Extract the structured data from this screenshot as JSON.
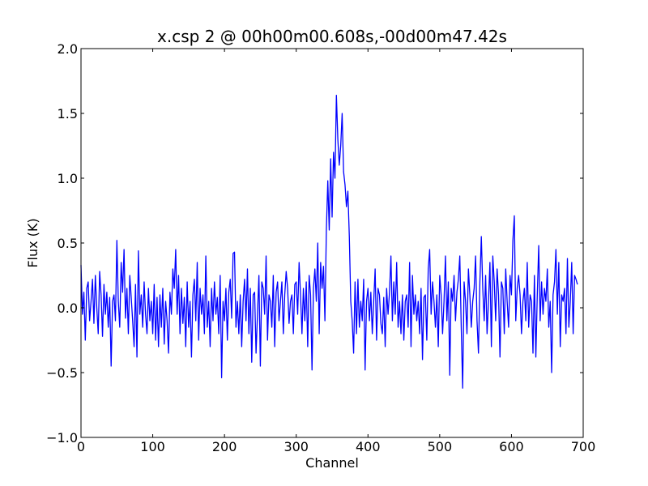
{
  "chart_data": {
    "type": "line",
    "title": "x.csp 2 @ 00h00m00.608s,-00d00m47.42s",
    "xlabel": "Channel",
    "ylabel": "Flux (K)",
    "xlim": [
      0,
      700
    ],
    "ylim": [
      -1.0,
      2.0
    ],
    "grid": false,
    "line_color": "#0000ff",
    "xticks": [
      0,
      100,
      200,
      300,
      400,
      500,
      600,
      700
    ],
    "xtick_labels": [
      "0",
      "100",
      "200",
      "300",
      "400",
      "500",
      "600",
      "700"
    ],
    "yticks": [
      -1.0,
      -0.5,
      0.0,
      0.5,
      1.0,
      1.5,
      2.0
    ],
    "ytick_labels": [
      "−1.0",
      "−0.5",
      "0.0",
      "0.5",
      "1.0",
      "1.5",
      "2.0"
    ],
    "series": [
      {
        "x_start": 0,
        "x_step": 2,
        "values": [
          0.33,
          -0.05,
          0.12,
          -0.25,
          0.15,
          0.2,
          -0.1,
          0.05,
          0.22,
          -0.12,
          0.25,
          0.0,
          -0.2,
          0.28,
          0.1,
          -0.22,
          0.18,
          -0.05,
          0.12,
          -0.15,
          0.08,
          -0.45,
          0.05,
          0.1,
          -0.1,
          0.52,
          0.05,
          -0.15,
          0.35,
          0.12,
          0.45,
          -0.08,
          0.15,
          -0.2,
          0.25,
          0.08,
          -0.1,
          -0.3,
          0.18,
          -0.38,
          0.44,
          -0.05,
          0.1,
          -0.15,
          0.2,
          -0.05,
          -0.2,
          0.15,
          -0.1,
          0.05,
          -0.2,
          0.18,
          -0.25,
          0.08,
          -0.3,
          0.1,
          -0.15,
          0.15,
          -0.28,
          0.05,
          -0.1,
          -0.35,
          0.12,
          -0.05,
          0.3,
          0.15,
          0.45,
          -0.05,
          0.25,
          -0.2,
          0.15,
          -0.12,
          0.08,
          -0.3,
          0.2,
          -0.15,
          0.05,
          -0.38,
          0.1,
          0.22,
          -0.1,
          0.35,
          -0.25,
          0.15,
          -0.05,
          0.1,
          -0.2,
          0.4,
          -0.15,
          0.05,
          -0.3,
          0.15,
          -0.1,
          0.2,
          -0.05,
          0.08,
          -0.2,
          0.25,
          -0.54,
          0.05,
          -0.1,
          0.15,
          -0.25,
          0.12,
          0.22,
          -0.08,
          0.42,
          0.43,
          -0.15,
          0.05,
          -0.2,
          0.1,
          -0.3,
          0.05,
          0.22,
          -0.1,
          0.3,
          -0.2,
          0.15,
          -0.42,
          0.1,
          0.12,
          -0.35,
          -0.05,
          0.25,
          -0.45,
          0.2,
          0.15,
          -0.05,
          0.4,
          -0.25,
          0.1,
          0.05,
          -0.15,
          0.25,
          -0.3,
          0.12,
          0.2,
          -0.1,
          0.05,
          0.2,
          -0.2,
          0.1,
          0.28,
          0.15,
          -0.12,
          0.05,
          0.1,
          -0.2,
          0.18,
          0.2,
          -0.05,
          0.35,
          0.1,
          -0.2,
          0.15,
          -0.1,
          0.2,
          -0.3,
          0.25,
          0.1,
          -0.48,
          0.15,
          0.3,
          0.05,
          0.5,
          -0.2,
          0.35,
          0.15,
          0.32,
          -0.1,
          0.6,
          0.98,
          0.6,
          1.15,
          0.7,
          1.2,
          1.0,
          1.64,
          1.3,
          1.1,
          1.25,
          1.5,
          1.05,
          0.95,
          0.78,
          0.9,
          0.55,
          0.05,
          -0.1,
          -0.35,
          0.2,
          -0.2,
          0.22,
          -0.15,
          0.05,
          -0.1,
          0.22,
          -0.48,
          0.05,
          0.15,
          -0.1,
          0.12,
          -0.2,
          0.05,
          0.3,
          -0.25,
          0.15,
          0.1,
          -0.12,
          -0.2,
          0.08,
          -0.3,
          0.15,
          -0.05,
          0.12,
          0.4,
          -0.1,
          0.2,
          -0.05,
          0.35,
          -0.15,
          0.05,
          -0.2,
          0.1,
          -0.25,
          0.05,
          0.1,
          -0.15,
          0.35,
          -0.3,
          0.25,
          -0.05,
          0.1,
          -0.1,
          0.05,
          -0.2,
          0.15,
          -0.4,
          0.08,
          0.1,
          -0.25,
          0.3,
          0.45,
          -0.05,
          0.2,
          0.05,
          -0.15,
          0.1,
          -0.3,
          0.25,
          0.1,
          -0.2,
          0.05,
          0.4,
          -0.1,
          0.2,
          -0.52,
          0.15,
          0.05,
          0.25,
          -0.1,
          0.12,
          0.22,
          0.4,
          -0.15,
          -0.62,
          0.2,
          0.05,
          -0.2,
          0.3,
          0.1,
          -0.15,
          0.05,
          0.15,
          0.4,
          -0.1,
          -0.35,
          0.2,
          0.55,
          0.15,
          -0.1,
          0.25,
          -0.2,
          0.05,
          0.35,
          -0.3,
          0.4,
          0.2,
          -0.1,
          0.3,
          0.1,
          -0.38,
          0.2,
          0.15,
          -0.2,
          0.3,
          0.05,
          -0.15,
          0.25,
          0.1,
          0.52,
          0.71,
          -0.1,
          0.15,
          0.25,
          0.1,
          -0.2,
          0.05,
          0.15,
          -0.1,
          0.35,
          -0.15,
          0.1,
          0.05,
          -0.35,
          0.25,
          -0.38,
          0.1,
          0.48,
          -0.1,
          0.2,
          -0.05,
          0.15,
          0.05,
          0.3,
          -0.15,
          0.05,
          -0.5,
          0.1,
          0.2,
          0.45,
          -0.05,
          0.35,
          -0.3,
          0.1,
          0.05,
          0.15,
          -0.2,
          0.38,
          -0.15,
          0.05,
          0.35,
          -0.2,
          0.25,
          0.22,
          0.18
        ]
      }
    ]
  }
}
